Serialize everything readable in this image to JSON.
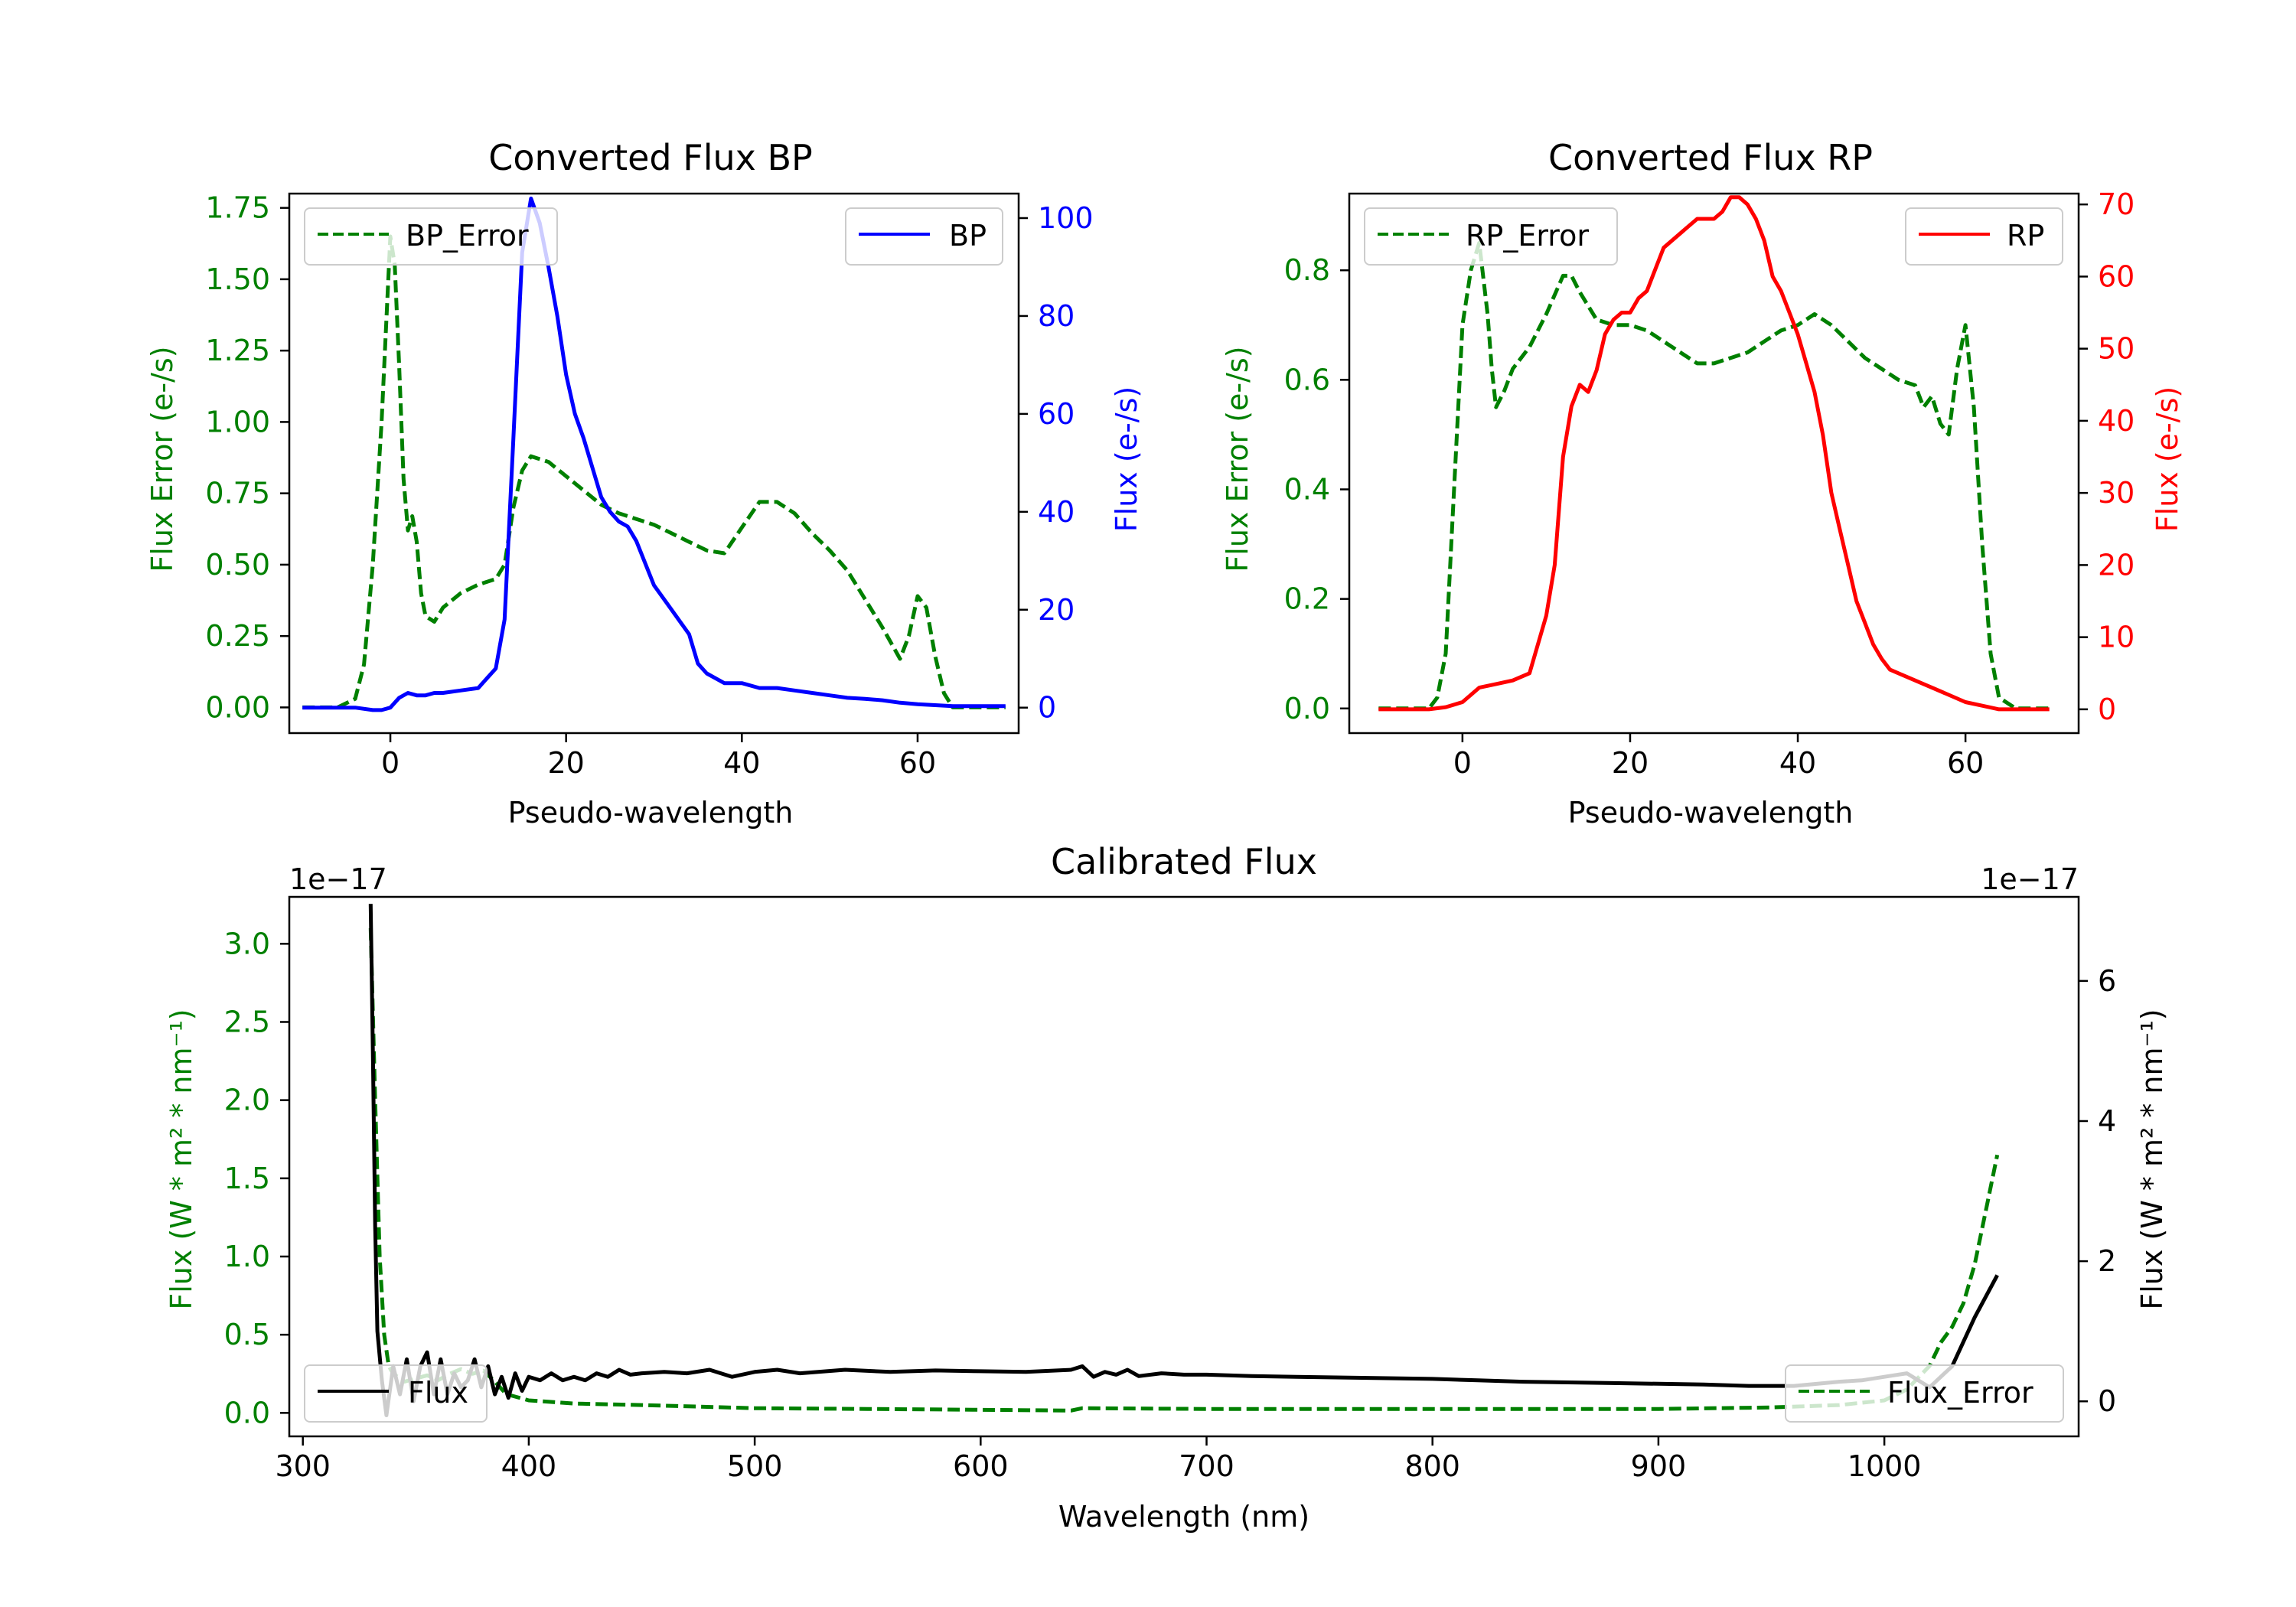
{
  "colors": {
    "error": "#008000",
    "bp": "#0000ff",
    "rp": "#ff0000",
    "flux": "#000000",
    "axis": "#000000"
  },
  "chart_data": [
    {
      "id": "bp",
      "type": "line",
      "title": "Converted Flux BP",
      "xlabel": "Pseudo-wavelength",
      "ylabel_left": "Flux Error (e-/s)",
      "ylabel_right": "Flux (e-/s)",
      "xlim": [
        -11.5,
        71.5
      ],
      "ylim_left": [
        -0.09,
        1.8
      ],
      "ylim_right": [
        -5.2,
        105
      ],
      "x_ticks": [
        0,
        20,
        40,
        60
      ],
      "x_tick_labels": [
        "0",
        "20",
        "40",
        "60"
      ],
      "y_left_ticks": [
        0,
        0.25,
        0.5,
        0.75,
        1.0,
        1.25,
        1.5,
        1.75
      ],
      "y_left_tick_labels": [
        "0.00",
        "0.25",
        "0.50",
        "0.75",
        "1.00",
        "1.25",
        "1.50",
        "1.75"
      ],
      "y_right_ticks": [
        0,
        20,
        40,
        60,
        80,
        100
      ],
      "y_right_tick_labels": [
        "0",
        "20",
        "40",
        "60",
        "80",
        "100"
      ],
      "legend_left": {
        "label": "BP_Error",
        "position": "upper-left"
      },
      "legend_right": {
        "label": "BP",
        "position": "upper-right"
      },
      "series": [
        {
          "name": "BP_Error",
          "axis": "left",
          "style": "dashed",
          "color": "#008000",
          "x": [
            -10,
            -6,
            -4,
            -3,
            -2,
            -1,
            0,
            0.5,
            1,
            1.5,
            2,
            2.5,
            3,
            3.5,
            4,
            5,
            6,
            8,
            10,
            12,
            13,
            14,
            15,
            16,
            18,
            20,
            22,
            24,
            26,
            28,
            30,
            32,
            34,
            36,
            38,
            40,
            42,
            44,
            46,
            48,
            50,
            52,
            54,
            56,
            58,
            59,
            60,
            61,
            62,
            63,
            64,
            66,
            68,
            70
          ],
          "y": [
            0,
            0,
            0.03,
            0.15,
            0.5,
            1.0,
            1.65,
            1.55,
            1.2,
            0.8,
            0.62,
            0.67,
            0.58,
            0.4,
            0.32,
            0.3,
            0.35,
            0.4,
            0.43,
            0.45,
            0.5,
            0.7,
            0.83,
            0.88,
            0.86,
            0.81,
            0.76,
            0.71,
            0.68,
            0.66,
            0.64,
            0.61,
            0.58,
            0.55,
            0.54,
            0.63,
            0.72,
            0.72,
            0.68,
            0.61,
            0.55,
            0.48,
            0.38,
            0.28,
            0.17,
            0.25,
            0.39,
            0.35,
            0.18,
            0.05,
            0,
            0,
            0,
            0
          ]
        },
        {
          "name": "BP",
          "axis": "right",
          "style": "solid",
          "color": "#0000ff",
          "x": [
            -10,
            -6,
            -4,
            -2,
            -1,
            0,
            1,
            2,
            3,
            4,
            5,
            6,
            8,
            10,
            11,
            12,
            13,
            14,
            15,
            16,
            17,
            18,
            19,
            20,
            21,
            22,
            23,
            24,
            25,
            26,
            27,
            28,
            30,
            32,
            34,
            35,
            36,
            38,
            40,
            42,
            44,
            46,
            48,
            50,
            52,
            54,
            56,
            58,
            60,
            62,
            64,
            66,
            68,
            70
          ],
          "y": [
            0,
            0,
            0,
            -0.5,
            -0.5,
            0,
            2,
            3,
            2.5,
            2.5,
            3,
            3,
            3.5,
            4,
            6,
            8,
            18,
            55,
            93,
            104,
            99,
            90,
            80,
            68,
            60,
            55,
            49,
            43,
            40,
            38,
            37,
            34,
            25,
            20,
            15,
            9,
            7,
            5,
            5,
            4,
            4,
            3.5,
            3,
            2.5,
            2,
            1.8,
            1.5,
            1,
            0.7,
            0.5,
            0.3,
            0.3,
            0.3,
            0.3
          ]
        }
      ]
    },
    {
      "id": "rp",
      "type": "line",
      "title": "Converted Flux RP",
      "xlabel": "Pseudo-wavelength",
      "ylabel_left": "Flux Error (e-/s)",
      "ylabel_right": "Flux (e-/s)",
      "xlim": [
        -13.5,
        73.5
      ],
      "ylim_left": [
        -0.045,
        0.94
      ],
      "ylim_right": [
        -3.3,
        71.5
      ],
      "x_ticks": [
        0,
        20,
        40,
        60
      ],
      "x_tick_labels": [
        "0",
        "20",
        "40",
        "60"
      ],
      "y_left_ticks": [
        0,
        0.2,
        0.4,
        0.6,
        0.8
      ],
      "y_left_tick_labels": [
        "0.0",
        "0.2",
        "0.4",
        "0.6",
        "0.8"
      ],
      "y_right_ticks": [
        0,
        10,
        20,
        30,
        40,
        50,
        60,
        70
      ],
      "y_right_tick_labels": [
        "0",
        "10",
        "20",
        "30",
        "40",
        "50",
        "60",
        "70"
      ],
      "legend_left": {
        "label": "RP_Error",
        "position": "upper-left"
      },
      "legend_right": {
        "label": "RP",
        "position": "upper-right"
      },
      "series": [
        {
          "name": "RP_Error",
          "axis": "left",
          "style": "dashed",
          "color": "#008000",
          "x": [
            -10,
            -6,
            -4,
            -3,
            -2,
            -1,
            0,
            1,
            2,
            3,
            3.5,
            4,
            5,
            6,
            8,
            10,
            12,
            13,
            14,
            16,
            18,
            20,
            22,
            24,
            26,
            28,
            30,
            32,
            34,
            36,
            38,
            40,
            42,
            44,
            46,
            48,
            50,
            52,
            54,
            55,
            56,
            57,
            58,
            59,
            60,
            61,
            62,
            63,
            64,
            66,
            68,
            70
          ],
          "y": [
            0,
            0,
            0,
            0.02,
            0.1,
            0.4,
            0.7,
            0.8,
            0.85,
            0.72,
            0.62,
            0.55,
            0.58,
            0.62,
            0.66,
            0.72,
            0.79,
            0.79,
            0.76,
            0.71,
            0.7,
            0.7,
            0.69,
            0.67,
            0.65,
            0.63,
            0.63,
            0.64,
            0.65,
            0.67,
            0.69,
            0.7,
            0.72,
            0.7,
            0.67,
            0.64,
            0.62,
            0.6,
            0.59,
            0.55,
            0.57,
            0.52,
            0.5,
            0.62,
            0.7,
            0.55,
            0.3,
            0.1,
            0.02,
            0,
            0,
            0
          ]
        },
        {
          "name": "RP",
          "axis": "right",
          "style": "solid",
          "color": "#ff0000",
          "x": [
            -10,
            -4,
            -2,
            0,
            2,
            4,
            6,
            8,
            10,
            11,
            12,
            13,
            14,
            15,
            16,
            17,
            18,
            19,
            20,
            21,
            22,
            23,
            24,
            25,
            26,
            27,
            28,
            29,
            30,
            31,
            32,
            33,
            34,
            35,
            36,
            37,
            38,
            39,
            40,
            41,
            42,
            43,
            44,
            45,
            46,
            47,
            48,
            49,
            50,
            51,
            52,
            54,
            56,
            58,
            60,
            62,
            64,
            66,
            68,
            70
          ],
          "y": [
            0,
            0,
            0.3,
            1,
            3,
            3.5,
            4,
            5,
            13,
            20,
            35,
            42,
            45,
            44,
            47,
            52,
            54,
            55,
            55,
            57,
            58,
            61,
            64,
            65,
            66,
            67,
            68,
            68,
            68,
            69,
            71,
            71,
            70,
            68,
            65,
            60,
            58,
            55,
            52,
            48,
            44,
            38,
            30,
            25,
            20,
            15,
            12,
            9,
            7,
            5.5,
            5,
            4,
            3,
            2,
            1,
            0.5,
            0,
            0,
            0,
            0
          ]
        }
      ]
    },
    {
      "id": "calibrated",
      "type": "line",
      "title": "Calibrated Flux",
      "xlabel": "Wavelength (nm)",
      "ylabel_left": "Flux (W * m² * nm⁻¹)",
      "ylabel_right": "Flux (W * m² * nm⁻¹)",
      "offset_left": "1e−17",
      "offset_right": "1e−17",
      "xlim": [
        294,
        1086
      ],
      "ylim_left": [
        -0.15,
        3.3
      ],
      "ylim_right": [
        -0.5,
        7.2
      ],
      "x_ticks": [
        300,
        400,
        500,
        600,
        700,
        800,
        900,
        1000
      ],
      "x_tick_labels": [
        "300",
        "400",
        "500",
        "600",
        "700",
        "800",
        "900",
        "1000"
      ],
      "y_left_ticks": [
        0,
        0.5,
        1.0,
        1.5,
        2.0,
        2.5,
        3.0
      ],
      "y_left_tick_labels": [
        "0.0",
        "0.5",
        "1.0",
        "1.5",
        "2.0",
        "2.5",
        "3.0"
      ],
      "y_right_ticks": [
        0,
        2,
        4,
        6
      ],
      "y_right_tick_labels": [
        "0",
        "2",
        "4",
        "6"
      ],
      "legend_left": {
        "label": "Flux",
        "position": "lower-left"
      },
      "legend_right": {
        "label": "Flux_Error",
        "position": "lower-right"
      },
      "series": [
        {
          "name": "Flux_Error",
          "axis": "left",
          "style": "dashed",
          "color": "#008000",
          "x": [
            330,
            332,
            334,
            336,
            338,
            340,
            345,
            350,
            355,
            360,
            365,
            370,
            375,
            380,
            385,
            390,
            400,
            420,
            450,
            500,
            550,
            600,
            640,
            645,
            700,
            800,
            900,
            950,
            980,
            1000,
            1010,
            1020,
            1025,
            1030,
            1035,
            1040,
            1045,
            1050
          ],
          "y": [
            3.1,
            2.0,
            1.0,
            0.5,
            0.3,
            0.25,
            0.2,
            0.22,
            0.24,
            0.21,
            0.25,
            0.28,
            0.25,
            0.27,
            0.2,
            0.12,
            0.08,
            0.06,
            0.05,
            0.03,
            0.025,
            0.02,
            0.015,
            0.03,
            0.025,
            0.025,
            0.025,
            0.035,
            0.05,
            0.08,
            0.15,
            0.3,
            0.45,
            0.55,
            0.7,
            0.95,
            1.3,
            1.65
          ]
        },
        {
          "name": "Flux",
          "axis": "right",
          "style": "solid",
          "color": "#000000",
          "x": [
            330,
            331,
            332,
            333,
            335,
            337,
            340,
            343,
            346,
            349,
            352,
            355,
            358,
            361,
            364,
            367,
            370,
            373,
            376,
            379,
            382,
            385,
            388,
            391,
            394,
            397,
            400,
            405,
            410,
            415,
            420,
            425,
            430,
            435,
            440,
            445,
            450,
            460,
            470,
            480,
            490,
            500,
            510,
            520,
            540,
            560,
            580,
            600,
            620,
            640,
            645,
            650,
            655,
            660,
            665,
            670,
            680,
            690,
            700,
            720,
            740,
            760,
            780,
            800,
            820,
            840,
            860,
            880,
            900,
            920,
            940,
            960,
            980,
            990,
            1000,
            1010,
            1020,
            1030,
            1040,
            1050
          ],
          "y": [
            7.1,
            5.0,
            2.5,
            1.0,
            0.3,
            -0.2,
            0.5,
            0.1,
            0.6,
            0.0,
            0.5,
            0.7,
            0.1,
            0.6,
            0.1,
            0.4,
            0.2,
            0.3,
            0.6,
            0.2,
            0.5,
            0.1,
            0.35,
            0.05,
            0.4,
            0.15,
            0.35,
            0.3,
            0.4,
            0.3,
            0.35,
            0.3,
            0.4,
            0.35,
            0.45,
            0.38,
            0.4,
            0.42,
            0.4,
            0.45,
            0.35,
            0.42,
            0.45,
            0.4,
            0.45,
            0.42,
            0.44,
            0.43,
            0.42,
            0.45,
            0.5,
            0.35,
            0.42,
            0.38,
            0.45,
            0.36,
            0.4,
            0.38,
            0.38,
            0.36,
            0.35,
            0.34,
            0.33,
            0.32,
            0.3,
            0.28,
            0.27,
            0.26,
            0.25,
            0.24,
            0.22,
            0.22,
            0.28,
            0.3,
            0.35,
            0.4,
            0.2,
            0.5,
            1.2,
            1.8
          ]
        }
      ]
    }
  ]
}
